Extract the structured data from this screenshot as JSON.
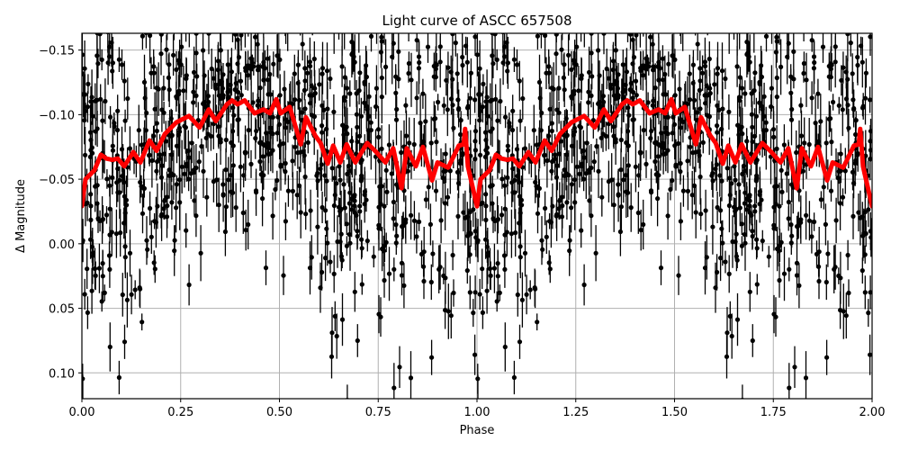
{
  "chart_data": {
    "type": "scatter",
    "title": "Light curve of ASCC 657508",
    "xlabel": "Phase",
    "ylabel": "Δ Magnitude",
    "xlim": [
      0.0,
      2.0
    ],
    "ylim": [
      0.12,
      -0.163
    ],
    "y_inverted": true,
    "grid": true,
    "xticks": [
      0.0,
      0.25,
      0.5,
      0.75,
      1.0,
      1.25,
      1.5,
      1.75,
      2.0
    ],
    "xtick_labels": [
      "0.00",
      "0.25",
      "0.50",
      "0.75",
      "1.00",
      "1.25",
      "1.50",
      "1.75",
      "2.00"
    ],
    "yticks": [
      -0.15,
      -0.1,
      -0.05,
      0.0,
      0.05,
      0.1
    ],
    "ytick_labels": [
      "−0.15",
      "−0.10",
      "−0.05",
      "0.00",
      "0.05",
      "0.10"
    ],
    "series": [
      {
        "name": "observations",
        "kind": "errorbar-scatter",
        "color": "#000000",
        "note": "Dense photometric points with vertical error bars, phase-folded and repeated over two cycles; centred near -0.05 with scatter roughly ±0.1 mag",
        "approx_points_per_cycle": 900,
        "center_mag": -0.06,
        "scatter_mag": 0.05,
        "errorbar_half_mag": [
          0.006,
          0.022
        ]
      },
      {
        "name": "binned mean",
        "kind": "line",
        "color": "#ff0000",
        "linewidth": 5,
        "repeat_period": 1.0,
        "phase": [
          0.0,
          0.009,
          0.032,
          0.048,
          0.062,
          0.077,
          0.091,
          0.107,
          0.13,
          0.148,
          0.171,
          0.189,
          0.21,
          0.239,
          0.271,
          0.298,
          0.321,
          0.339,
          0.367,
          0.38,
          0.394,
          0.412,
          0.437,
          0.46,
          0.476,
          0.492,
          0.503,
          0.526,
          0.554,
          0.567,
          0.59,
          0.604,
          0.622,
          0.636,
          0.654,
          0.67,
          0.692,
          0.722,
          0.745,
          0.768,
          0.788,
          0.809,
          0.822,
          0.845,
          0.863,
          0.886,
          0.9,
          0.927,
          0.954,
          0.966,
          0.97,
          0.977,
          1.0
        ],
        "mag": [
          -0.029,
          -0.05,
          -0.057,
          -0.069,
          -0.066,
          -0.065,
          -0.066,
          -0.06,
          -0.071,
          -0.063,
          -0.08,
          -0.072,
          -0.085,
          -0.094,
          -0.099,
          -0.09,
          -0.104,
          -0.095,
          -0.108,
          -0.111,
          -0.108,
          -0.111,
          -0.101,
          -0.104,
          -0.101,
          -0.112,
          -0.101,
          -0.106,
          -0.077,
          -0.098,
          -0.084,
          -0.078,
          -0.062,
          -0.076,
          -0.063,
          -0.077,
          -0.063,
          -0.078,
          -0.071,
          -0.063,
          -0.074,
          -0.043,
          -0.074,
          -0.06,
          -0.075,
          -0.049,
          -0.063,
          -0.059,
          -0.076,
          -0.077,
          -0.089,
          -0.06,
          -0.029
        ]
      }
    ]
  },
  "style": {
    "grid_color": "#b0b0b0",
    "axes_color": "#000000",
    "background": "#ffffff"
  }
}
